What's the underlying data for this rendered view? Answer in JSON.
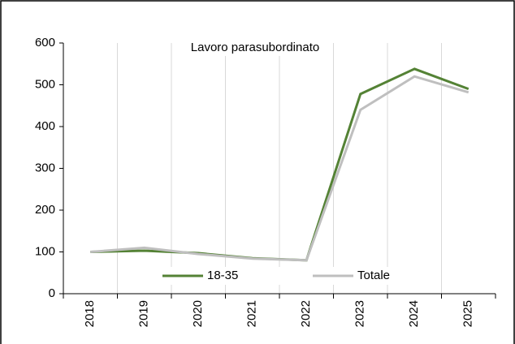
{
  "chart_data": {
    "type": "line",
    "title": "Lavoro parasubordinato",
    "categories": [
      "2018",
      "2019",
      "2020",
      "2021",
      "2022",
      "2023",
      "2024",
      "2025"
    ],
    "series": [
      {
        "name": "18-35",
        "color": "#548235",
        "values": [
          100,
          103,
          97,
          85,
          80,
          478,
          538,
          490
        ]
      },
      {
        "name": "Totale",
        "color": "#bfbfbf",
        "values": [
          100,
          110,
          95,
          84,
          80,
          440,
          520,
          482
        ]
      }
    ],
    "ylim": [
      0,
      600
    ],
    "yticks": [
      0,
      100,
      200,
      300,
      400,
      500,
      600
    ],
    "grid": true,
    "legend": "bottom"
  }
}
